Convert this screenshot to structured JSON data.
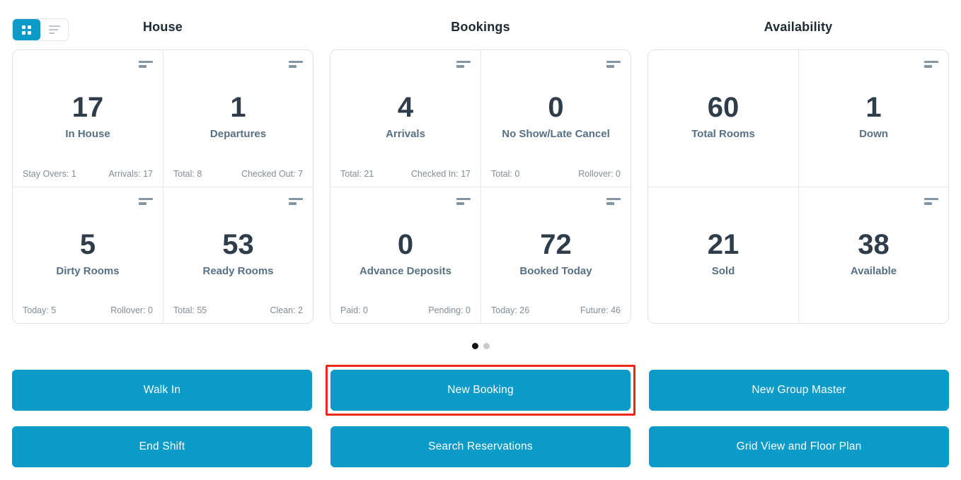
{
  "view_toggle": {
    "grid_button_icon": "grid-icon",
    "list_button_icon": "list-lines-icon",
    "active": "grid"
  },
  "sections": [
    {
      "title": "House",
      "cards": [
        {
          "value": "17",
          "label": "In House",
          "footer_left": "Stay Overs: 1",
          "footer_right": "Arrivals: 17",
          "menu_icon": "sort-lines-icon"
        },
        {
          "value": "1",
          "label": "Departures",
          "footer_left": "Total: 8",
          "footer_right": "Checked Out: 7",
          "menu_icon": "sort-lines-icon"
        },
        {
          "value": "5",
          "label": "Dirty Rooms",
          "footer_left": "Today: 5",
          "footer_right": "Rollover: 0",
          "menu_icon": "sort-lines-icon"
        },
        {
          "value": "53",
          "label": "Ready Rooms",
          "footer_left": "Total: 55",
          "footer_right": "Clean: 2",
          "menu_icon": "sort-lines-icon"
        }
      ]
    },
    {
      "title": "Bookings",
      "cards": [
        {
          "value": "4",
          "label": "Arrivals",
          "footer_left": "Total: 21",
          "footer_right": "Checked In: 17",
          "menu_icon": "sort-lines-icon"
        },
        {
          "value": "0",
          "label": "No Show/Late Cancel",
          "footer_left": "Total: 0",
          "footer_right": "Rollover: 0",
          "menu_icon": "sort-lines-icon"
        },
        {
          "value": "0",
          "label": "Advance Deposits",
          "footer_left": "Paid: 0",
          "footer_right": "Pending: 0",
          "menu_icon": "sort-lines-icon"
        },
        {
          "value": "72",
          "label": "Booked Today",
          "footer_left": "Today: 26",
          "footer_right": "Future: 46",
          "menu_icon": "sort-lines-icon"
        }
      ]
    },
    {
      "title": "Availability",
      "cards": [
        {
          "value": "60",
          "label": "Total Rooms"
        },
        {
          "value": "1",
          "label": "Down",
          "menu_icon": "sort-lines-icon"
        },
        {
          "value": "21",
          "label": "Sold"
        },
        {
          "value": "38",
          "label": "Available",
          "menu_icon": "sort-lines-icon"
        }
      ]
    }
  ],
  "pagination": {
    "total_dots": 2,
    "active_index": 0
  },
  "actions": {
    "walk_in": "Walk In",
    "new_booking": "New Booking",
    "new_group_master": "New Group Master",
    "end_shift": "End Shift",
    "search_reservations": "Search Reservations",
    "grid_view_floor_plan": "Grid View and Floor Plan"
  },
  "annotation": {
    "highlighted_button": "New Booking",
    "highlight_color": "#f1261b"
  },
  "colors": {
    "accent_blue": "#0a9bc9",
    "number_dark": "#2e3d49",
    "label_slate": "#587084",
    "muted_gray": "#828d96",
    "border_gray": "#dce3e8",
    "annotation_red": "#f1261b"
  }
}
